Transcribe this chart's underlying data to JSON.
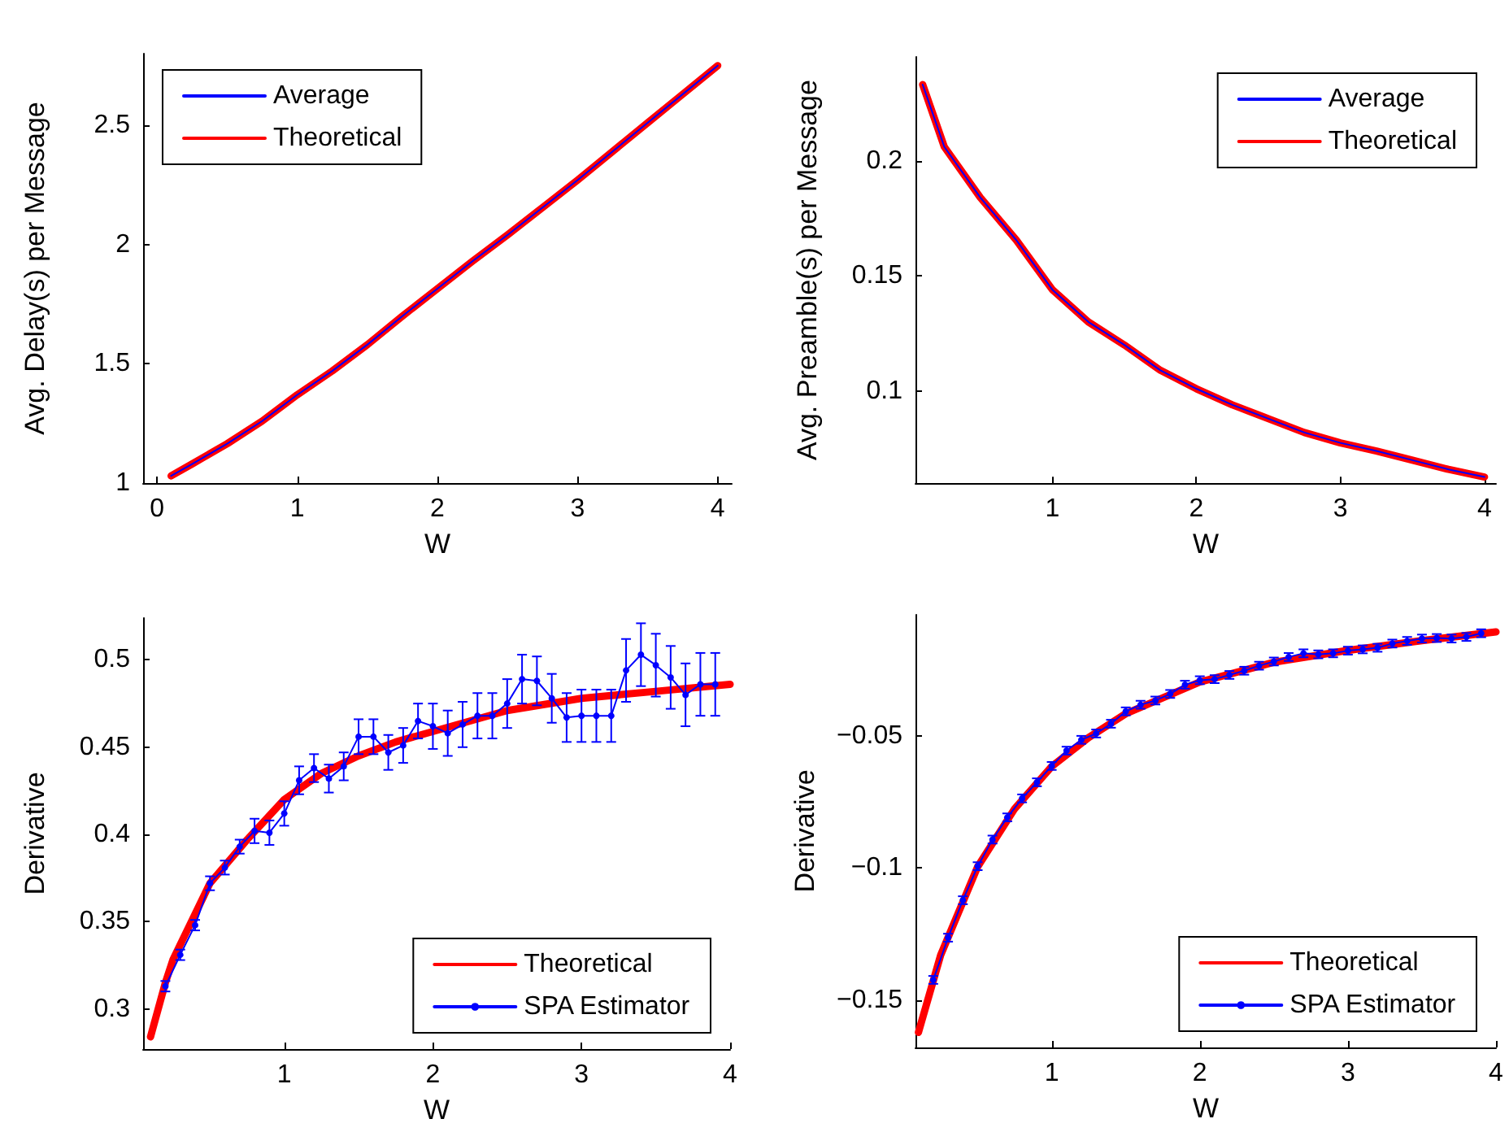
{
  "chart_data": [
    {
      "type": "line",
      "xlabel": "W",
      "ylabel": "Avg. Delay(s) per Message",
      "xlim": [
        -0.1,
        4.1
      ],
      "ylim": [
        1,
        2.8
      ],
      "xticks": [
        0,
        1,
        2,
        3,
        4
      ],
      "yticks": [
        1,
        1.5,
        2,
        2.5
      ],
      "legend": "top left",
      "line_style": "solid",
      "series": [
        {
          "name": "Average",
          "color": "#0000ff",
          "marker": "none",
          "x": [
            0.1,
            0.25,
            0.5,
            0.75,
            1,
            1.25,
            1.5,
            1.75,
            2,
            2.25,
            2.5,
            2.75,
            3,
            3.25,
            3.5,
            3.75,
            4
          ],
          "values": [
            1.03,
            1.08,
            1.165,
            1.26,
            1.37,
            1.47,
            1.58,
            1.7,
            1.815,
            1.93,
            2.04,
            2.155,
            2.27,
            2.39,
            2.51,
            2.63,
            2.75
          ]
        },
        {
          "name": "Theoretical",
          "color": "#ff0000",
          "marker": "none",
          "x": [
            0.1,
            0.25,
            0.5,
            0.75,
            1,
            1.25,
            1.5,
            1.75,
            2,
            2.25,
            2.5,
            2.75,
            3,
            3.25,
            3.5,
            3.75,
            4
          ],
          "values": [
            1.03,
            1.08,
            1.165,
            1.26,
            1.37,
            1.47,
            1.58,
            1.7,
            1.815,
            1.93,
            2.04,
            2.155,
            2.27,
            2.39,
            2.51,
            2.63,
            2.75
          ]
        }
      ]
    },
    {
      "type": "line",
      "xlabel": "W",
      "ylabel": "Avg. Preamble(s) per Message",
      "xlim": [
        0.05,
        4.08
      ],
      "ylim": [
        0.06,
        0.245
      ],
      "xticks": [
        1,
        2,
        3,
        4
      ],
      "yticks": [
        0.1,
        0.15,
        0.2
      ],
      "legend": "top right",
      "line_style": "solid",
      "series": [
        {
          "name": "Average",
          "color": "#0000ff",
          "marker": "none",
          "x": [
            0.1,
            0.25,
            0.5,
            0.75,
            1,
            1.25,
            1.5,
            1.75,
            2,
            2.25,
            2.5,
            2.75,
            3,
            3.25,
            3.5,
            3.75,
            4
          ],
          "values": [
            0.233,
            0.206,
            0.184,
            0.1655,
            0.144,
            0.13,
            0.12,
            0.109,
            0.101,
            0.094,
            0.088,
            0.082,
            0.0775,
            0.074,
            0.07,
            0.066,
            0.0627
          ]
        },
        {
          "name": "Theoretical",
          "color": "#ff0000",
          "marker": "none",
          "x": [
            0.1,
            0.25,
            0.5,
            0.75,
            1,
            1.25,
            1.5,
            1.75,
            2,
            2.25,
            2.5,
            2.75,
            3,
            3.25,
            3.5,
            3.75,
            4
          ],
          "values": [
            0.233,
            0.206,
            0.184,
            0.1655,
            0.144,
            0.13,
            0.12,
            0.109,
            0.101,
            0.094,
            0.088,
            0.082,
            0.0775,
            0.074,
            0.07,
            0.066,
            0.0627
          ]
        }
      ]
    },
    {
      "type": "line",
      "xlabel": "W",
      "ylabel": "Derivative",
      "xlim": [
        0.05,
        4
      ],
      "ylim": [
        0.277,
        0.524
      ],
      "xticks": [
        1,
        2,
        3,
        4
      ],
      "yticks": [
        0.3,
        0.35,
        0.4,
        0.45,
        0.5
      ],
      "legend": "bottom right",
      "line_style": "solid",
      "series": [
        {
          "name": "Theoretical",
          "color": "#ff0000",
          "marker": "none",
          "x": [
            0.1,
            0.2,
            0.25,
            0.5,
            0.75,
            1,
            1.25,
            1.5,
            1.75,
            2,
            2.5,
            3,
            3.5,
            4
          ],
          "values": [
            0.284,
            0.315,
            0.328,
            0.372,
            0.397,
            0.42,
            0.435,
            0.445,
            0.453,
            0.459,
            0.471,
            0.478,
            0.482,
            0.486
          ]
        },
        {
          "name": "SPA Estimator",
          "color": "#0000ff",
          "marker": "circle",
          "x": [
            0.2,
            0.3,
            0.4,
            0.5,
            0.6,
            0.7,
            0.8,
            0.9,
            1.0,
            1.1,
            1.2,
            1.3,
            1.4,
            1.5,
            1.6,
            1.7,
            1.8,
            1.9,
            2.0,
            2.1,
            2.2,
            2.3,
            2.4,
            2.5,
            2.6,
            2.7,
            2.8,
            2.9,
            3.0,
            3.1,
            3.2,
            3.3,
            3.4,
            3.5,
            3.6,
            3.7,
            3.8,
            3.9
          ],
          "values": [
            0.313,
            0.331,
            0.348,
            0.372,
            0.381,
            0.393,
            0.402,
            0.401,
            0.412,
            0.431,
            0.438,
            0.432,
            0.439,
            0.456,
            0.456,
            0.447,
            0.451,
            0.465,
            0.462,
            0.458,
            0.463,
            0.468,
            0.468,
            0.475,
            0.489,
            0.488,
            0.478,
            0.467,
            0.468,
            0.468,
            0.468,
            0.494,
            0.503,
            0.497,
            0.49,
            0.48,
            0.486,
            0.486
          ],
          "errors": [
            0.003,
            0.003,
            0.003,
            0.004,
            0.004,
            0.004,
            0.007,
            0.007,
            0.007,
            0.008,
            0.008,
            0.008,
            0.008,
            0.01,
            0.01,
            0.01,
            0.01,
            0.01,
            0.013,
            0.013,
            0.013,
            0.013,
            0.013,
            0.014,
            0.014,
            0.014,
            0.014,
            0.014,
            0.015,
            0.015,
            0.015,
            0.018,
            0.018,
            0.018,
            0.018,
            0.018,
            0.018,
            0.018
          ]
        }
      ]
    },
    {
      "type": "line",
      "xlabel": "W",
      "ylabel": "Derivative",
      "xlim": [
        0.08,
        4
      ],
      "ylim": [
        -0.168,
        -0.004
      ],
      "xticks": [
        1,
        2,
        3,
        4
      ],
      "yticks": [
        {
          "value": -0.15,
          "label": "−0.15"
        },
        {
          "value": -0.1,
          "label": "−0.1"
        },
        {
          "value": -0.05,
          "label": "−0.05"
        }
      ],
      "legend": "bottom right",
      "line_style": "solid",
      "series": [
        {
          "name": "Theoretical",
          "color": "#ff0000",
          "marker": "none",
          "x": [
            0.1,
            0.25,
            0.5,
            0.75,
            1,
            1.25,
            1.5,
            1.75,
            2,
            2.5,
            3,
            3.5,
            4
          ],
          "values": [
            -0.1623,
            -0.133,
            -0.0995,
            -0.0775,
            -0.0615,
            -0.0505,
            -0.0415,
            -0.0355,
            -0.0295,
            -0.022,
            -0.0175,
            -0.0138,
            -0.0105
          ]
        },
        {
          "name": "SPA Estimator",
          "color": "#0000ff",
          "marker": "circle",
          "x": [
            0.2,
            0.3,
            0.4,
            0.5,
            0.6,
            0.7,
            0.8,
            0.9,
            1.0,
            1.1,
            1.2,
            1.3,
            1.4,
            1.5,
            1.6,
            1.7,
            1.8,
            1.9,
            2.0,
            2.1,
            2.2,
            2.3,
            2.4,
            2.5,
            2.6,
            2.7,
            2.8,
            2.9,
            3.0,
            3.1,
            3.2,
            3.3,
            3.4,
            3.5,
            3.6,
            3.7,
            3.8,
            3.9
          ],
          "values": [
            -0.1424,
            -0.1264,
            -0.1122,
            -0.0993,
            -0.0892,
            -0.0808,
            -0.0736,
            -0.0675,
            -0.0613,
            -0.0555,
            -0.0514,
            -0.049,
            -0.0453,
            -0.0406,
            -0.0381,
            -0.0365,
            -0.034,
            -0.0305,
            -0.0288,
            -0.0284,
            -0.0268,
            -0.0252,
            -0.0233,
            -0.0217,
            -0.02,
            -0.0186,
            -0.019,
            -0.0186,
            -0.0176,
            -0.0171,
            -0.0165,
            -0.0149,
            -0.0139,
            -0.013,
            -0.0128,
            -0.013,
            -0.0124,
            -0.011
          ],
          "errors": [
            0.0015,
            0.0015,
            0.0015,
            0.0015,
            0.0015,
            0.0015,
            0.0015,
            0.0015,
            0.0015,
            0.0015,
            0.0015,
            0.0015,
            0.0015,
            0.0015,
            0.0015,
            0.0015,
            0.0015,
            0.0015,
            0.0015,
            0.0015,
            0.0015,
            0.0015,
            0.0015,
            0.0015,
            0.0015,
            0.0015,
            0.0015,
            0.0015,
            0.0015,
            0.0015,
            0.0015,
            0.0015,
            0.0015,
            0.0015,
            0.0015,
            0.0015,
            0.0015,
            0.0015
          ]
        }
      ]
    }
  ]
}
